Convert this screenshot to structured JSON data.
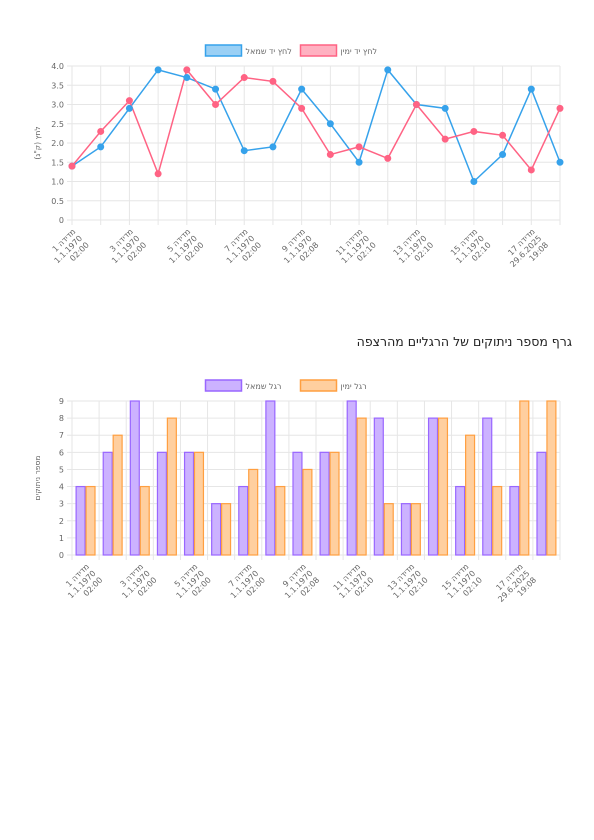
{
  "section_title": "גרף מספר ניתוקים של הרגליים מהרצפה",
  "colors": {
    "blue": "#36a2eb",
    "blue_fill": "#9ad0f5",
    "pink": "#ff6384",
    "pink_fill": "#ffb1c1",
    "purple": "#9966ff",
    "purple_fill": "#ccb2ff",
    "orange": "#ff9f40",
    "orange_fill": "#ffcf9f",
    "grid": "#e6e6e6"
  },
  "chart_data": [
    {
      "type": "line",
      "ylabel": "לחץ (ק\"ג)",
      "ylim": [
        0,
        4
      ],
      "yticks": [
        "0",
        "0.5",
        "1.0",
        "1.5",
        "2.0",
        "2.5",
        "3.0",
        "3.5",
        "4.0"
      ],
      "legend_position": "top",
      "grid": true,
      "x_labels": [
        [
          "מדידה 1",
          "1.1.1970",
          "02:00"
        ],
        [
          "מדידה 3",
          "1.1.1970",
          "02:00"
        ],
        [
          "מדידה 5",
          "1.1.1970",
          "02:00"
        ],
        [
          "מדידה 7",
          "1.1.1970",
          "02:00"
        ],
        [
          "מדידה 9",
          "1.1.1970",
          "02:08"
        ],
        [
          "מדידה 11",
          "1.1.1970",
          "02:10"
        ],
        [
          "מדידה 13",
          "1.1.1970",
          "02:10"
        ],
        [
          "מדידה 15",
          "1.1.1970",
          "02:10"
        ],
        [
          "מדידה 17",
          "29.6.2025",
          "19:08"
        ]
      ],
      "series": [
        {
          "name": "לחץ יד שמאל",
          "color": "#36a2eb",
          "values": [
            1.4,
            1.9,
            2.9,
            3.9,
            3.7,
            3.4,
            1.8,
            1.9,
            3.4,
            2.5,
            1.5,
            3.9,
            3.0,
            2.9,
            1.0,
            1.7,
            3.4,
            1.5
          ]
        },
        {
          "name": "לחץ יד ימין",
          "color": "#ff6384",
          "values": [
            1.4,
            2.3,
            3.1,
            1.2,
            3.9,
            3.0,
            3.7,
            3.6,
            2.9,
            1.7,
            1.9,
            1.6,
            3.0,
            2.1,
            2.3,
            2.2,
            1.3,
            2.9
          ]
        }
      ]
    },
    {
      "type": "bar",
      "ylabel": "מספר ניתוקים",
      "ylim": [
        0,
        9
      ],
      "yticks": [
        "0",
        "1",
        "2",
        "3",
        "4",
        "5",
        "6",
        "7",
        "8",
        "9"
      ],
      "legend_position": "top",
      "grid": true,
      "x_labels": [
        [
          "מדידה 1",
          "1.1.1970",
          "02:00"
        ],
        [
          "מדידה 3",
          "1.1.1970",
          "02:00"
        ],
        [
          "מדידה 5",
          "1.1.1970",
          "02:00"
        ],
        [
          "מדידה 7",
          "1.1.1970",
          "02:00"
        ],
        [
          "מדידה 9",
          "1.1.1970",
          "02:08"
        ],
        [
          "מדידה 11",
          "1.1.1970",
          "02:10"
        ],
        [
          "מדידה 13",
          "1.1.1970",
          "02:10"
        ],
        [
          "מדידה 15",
          "1.1.1970",
          "02:10"
        ],
        [
          "מדידה 17",
          "29.6.2025",
          "19:08"
        ]
      ],
      "series": [
        {
          "name": "רגל שמאל",
          "color": "#9966ff",
          "values": [
            4,
            6,
            9,
            6,
            6,
            3,
            4,
            9,
            6,
            6,
            9,
            8,
            3,
            8,
            4,
            8,
            4,
            6
          ]
        },
        {
          "name": "רגל ימין",
          "color": "#ff9f40",
          "values": [
            4,
            7,
            4,
            8,
            6,
            3,
            5,
            4,
            5,
            6,
            8,
            3,
            3,
            8,
            7,
            4,
            9,
            9
          ]
        }
      ]
    }
  ]
}
